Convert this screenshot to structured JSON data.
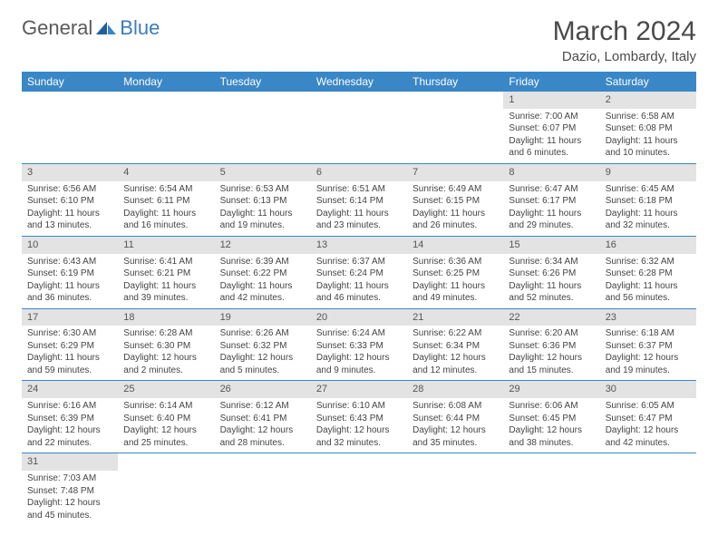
{
  "logo": {
    "text1": "General",
    "text2": "Blue"
  },
  "title": "March 2024",
  "subtitle": "Dazio, Lombardy, Italy",
  "colors": {
    "header_bg": "#3a87c7",
    "header_text": "#ffffff",
    "daynum_bg": "#e3e3e3",
    "row_border": "#3a87c7",
    "logo_gray": "#5a5a5a",
    "logo_blue": "#3a7bbf"
  },
  "weekdays": [
    "Sunday",
    "Monday",
    "Tuesday",
    "Wednesday",
    "Thursday",
    "Friday",
    "Saturday"
  ],
  "weeks": [
    [
      {
        "n": "",
        "lines": []
      },
      {
        "n": "",
        "lines": []
      },
      {
        "n": "",
        "lines": []
      },
      {
        "n": "",
        "lines": []
      },
      {
        "n": "",
        "lines": []
      },
      {
        "n": "1",
        "lines": [
          "Sunrise: 7:00 AM",
          "Sunset: 6:07 PM",
          "Daylight: 11 hours and 6 minutes."
        ]
      },
      {
        "n": "2",
        "lines": [
          "Sunrise: 6:58 AM",
          "Sunset: 6:08 PM",
          "Daylight: 11 hours and 10 minutes."
        ]
      }
    ],
    [
      {
        "n": "3",
        "lines": [
          "Sunrise: 6:56 AM",
          "Sunset: 6:10 PM",
          "Daylight: 11 hours and 13 minutes."
        ]
      },
      {
        "n": "4",
        "lines": [
          "Sunrise: 6:54 AM",
          "Sunset: 6:11 PM",
          "Daylight: 11 hours and 16 minutes."
        ]
      },
      {
        "n": "5",
        "lines": [
          "Sunrise: 6:53 AM",
          "Sunset: 6:13 PM",
          "Daylight: 11 hours and 19 minutes."
        ]
      },
      {
        "n": "6",
        "lines": [
          "Sunrise: 6:51 AM",
          "Sunset: 6:14 PM",
          "Daylight: 11 hours and 23 minutes."
        ]
      },
      {
        "n": "7",
        "lines": [
          "Sunrise: 6:49 AM",
          "Sunset: 6:15 PM",
          "Daylight: 11 hours and 26 minutes."
        ]
      },
      {
        "n": "8",
        "lines": [
          "Sunrise: 6:47 AM",
          "Sunset: 6:17 PM",
          "Daylight: 11 hours and 29 minutes."
        ]
      },
      {
        "n": "9",
        "lines": [
          "Sunrise: 6:45 AM",
          "Sunset: 6:18 PM",
          "Daylight: 11 hours and 32 minutes."
        ]
      }
    ],
    [
      {
        "n": "10",
        "lines": [
          "Sunrise: 6:43 AM",
          "Sunset: 6:19 PM",
          "Daylight: 11 hours and 36 minutes."
        ]
      },
      {
        "n": "11",
        "lines": [
          "Sunrise: 6:41 AM",
          "Sunset: 6:21 PM",
          "Daylight: 11 hours and 39 minutes."
        ]
      },
      {
        "n": "12",
        "lines": [
          "Sunrise: 6:39 AM",
          "Sunset: 6:22 PM",
          "Daylight: 11 hours and 42 minutes."
        ]
      },
      {
        "n": "13",
        "lines": [
          "Sunrise: 6:37 AM",
          "Sunset: 6:24 PM",
          "Daylight: 11 hours and 46 minutes."
        ]
      },
      {
        "n": "14",
        "lines": [
          "Sunrise: 6:36 AM",
          "Sunset: 6:25 PM",
          "Daylight: 11 hours and 49 minutes."
        ]
      },
      {
        "n": "15",
        "lines": [
          "Sunrise: 6:34 AM",
          "Sunset: 6:26 PM",
          "Daylight: 11 hours and 52 minutes."
        ]
      },
      {
        "n": "16",
        "lines": [
          "Sunrise: 6:32 AM",
          "Sunset: 6:28 PM",
          "Daylight: 11 hours and 56 minutes."
        ]
      }
    ],
    [
      {
        "n": "17",
        "lines": [
          "Sunrise: 6:30 AM",
          "Sunset: 6:29 PM",
          "Daylight: 11 hours and 59 minutes."
        ]
      },
      {
        "n": "18",
        "lines": [
          "Sunrise: 6:28 AM",
          "Sunset: 6:30 PM",
          "Daylight: 12 hours and 2 minutes."
        ]
      },
      {
        "n": "19",
        "lines": [
          "Sunrise: 6:26 AM",
          "Sunset: 6:32 PM",
          "Daylight: 12 hours and 5 minutes."
        ]
      },
      {
        "n": "20",
        "lines": [
          "Sunrise: 6:24 AM",
          "Sunset: 6:33 PM",
          "Daylight: 12 hours and 9 minutes."
        ]
      },
      {
        "n": "21",
        "lines": [
          "Sunrise: 6:22 AM",
          "Sunset: 6:34 PM",
          "Daylight: 12 hours and 12 minutes."
        ]
      },
      {
        "n": "22",
        "lines": [
          "Sunrise: 6:20 AM",
          "Sunset: 6:36 PM",
          "Daylight: 12 hours and 15 minutes."
        ]
      },
      {
        "n": "23",
        "lines": [
          "Sunrise: 6:18 AM",
          "Sunset: 6:37 PM",
          "Daylight: 12 hours and 19 minutes."
        ]
      }
    ],
    [
      {
        "n": "24",
        "lines": [
          "Sunrise: 6:16 AM",
          "Sunset: 6:39 PM",
          "Daylight: 12 hours and 22 minutes."
        ]
      },
      {
        "n": "25",
        "lines": [
          "Sunrise: 6:14 AM",
          "Sunset: 6:40 PM",
          "Daylight: 12 hours and 25 minutes."
        ]
      },
      {
        "n": "26",
        "lines": [
          "Sunrise: 6:12 AM",
          "Sunset: 6:41 PM",
          "Daylight: 12 hours and 28 minutes."
        ]
      },
      {
        "n": "27",
        "lines": [
          "Sunrise: 6:10 AM",
          "Sunset: 6:43 PM",
          "Daylight: 12 hours and 32 minutes."
        ]
      },
      {
        "n": "28",
        "lines": [
          "Sunrise: 6:08 AM",
          "Sunset: 6:44 PM",
          "Daylight: 12 hours and 35 minutes."
        ]
      },
      {
        "n": "29",
        "lines": [
          "Sunrise: 6:06 AM",
          "Sunset: 6:45 PM",
          "Daylight: 12 hours and 38 minutes."
        ]
      },
      {
        "n": "30",
        "lines": [
          "Sunrise: 6:05 AM",
          "Sunset: 6:47 PM",
          "Daylight: 12 hours and 42 minutes."
        ]
      }
    ],
    [
      {
        "n": "31",
        "lines": [
          "Sunrise: 7:03 AM",
          "Sunset: 7:48 PM",
          "Daylight: 12 hours and 45 minutes."
        ]
      },
      {
        "n": "",
        "lines": []
      },
      {
        "n": "",
        "lines": []
      },
      {
        "n": "",
        "lines": []
      },
      {
        "n": "",
        "lines": []
      },
      {
        "n": "",
        "lines": []
      },
      {
        "n": "",
        "lines": []
      }
    ]
  ]
}
